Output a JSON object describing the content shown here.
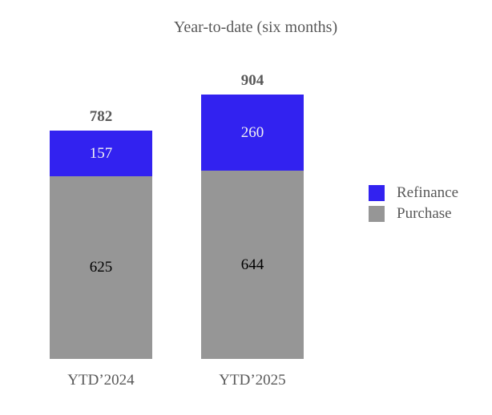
{
  "title": "Year-to-date (six months)",
  "colors": {
    "refinance": "#3222F0",
    "purchase": "#969696",
    "title_text": "#595959",
    "total_label_text": "#595959",
    "axis_label_text": "#595959",
    "background": "#FFFFFF"
  },
  "legend": [
    {
      "label": "Refinance",
      "color": "#3222F0"
    },
    {
      "label": "Purchase",
      "color": "#969696"
    }
  ],
  "chart_data": {
    "type": "bar",
    "stacked": true,
    "title": "Year-to-date (six months)",
    "categories": [
      "YTD’2024",
      "YTD’2025"
    ],
    "series": [
      {
        "name": "Purchase",
        "color": "#969696",
        "label_color": "#000000",
        "values": [
          625,
          644
        ]
      },
      {
        "name": "Refinance",
        "color": "#3222F0",
        "label_color": "#F2F2F2",
        "values": [
          157,
          260
        ]
      }
    ],
    "totals": [
      782,
      904
    ],
    "xlabel": "",
    "ylabel": "",
    "ylim": [
      0,
      950
    ],
    "grid": false,
    "axes_hidden": true,
    "legend_position": "right",
    "data_labels": "inside-center",
    "total_labels": "above-bar"
  }
}
